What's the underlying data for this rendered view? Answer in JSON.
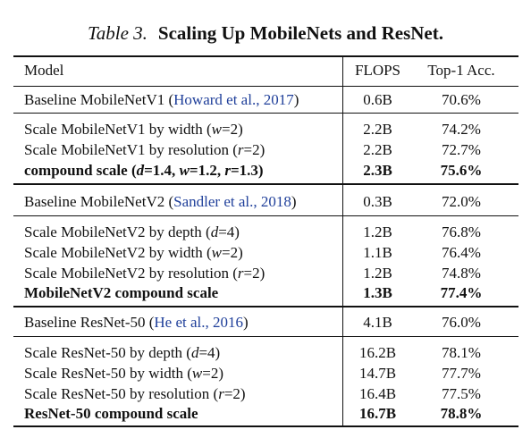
{
  "caption": {
    "number": "Table 3.",
    "title": "Scaling Up MobileNets and ResNet."
  },
  "header": {
    "model": "Model",
    "flops": "FLOPS",
    "acc": "Top-1 Acc."
  },
  "rows": {
    "m1_base": {
      "pre": "Baseline MobileNetV1 (",
      "cite": "Howard et al., 2017",
      "post": ")",
      "flops": "0.6B",
      "acc": "70.6%"
    },
    "m1_width": {
      "pre": "Scale MobileNetV1 by width (",
      "math": "w",
      "post": "=2)",
      "flops": "2.2B",
      "acc": "74.2%"
    },
    "m1_res": {
      "pre": "Scale MobileNetV1 by resolution (",
      "math": "r",
      "post": "=2)",
      "flops": "2.2B",
      "acc": "72.7%"
    },
    "m1_comp": {
      "pre": "compound scale (",
      "d": "d",
      "dval": "=1.4, ",
      "w": "w",
      "wval": "=1.2, ",
      "r": "r",
      "rval": "=1.3)",
      "flops": "2.3B",
      "acc": "75.6%"
    },
    "m2_base": {
      "pre": "Baseline MobileNetV2 (",
      "cite": "Sandler et al., 2018",
      "post": ")",
      "flops": "0.3B",
      "acc": "72.0%"
    },
    "m2_depth": {
      "pre": "Scale MobileNetV2 by depth (",
      "math": "d",
      "post": "=4)",
      "flops": "1.2B",
      "acc": "76.8%"
    },
    "m2_width": {
      "pre": "Scale MobileNetV2 by width (",
      "math": "w",
      "post": "=2)",
      "flops": "1.1B",
      "acc": "76.4%"
    },
    "m2_res": {
      "pre": "Scale MobileNetV2 by resolution (",
      "math": "r",
      "post": "=2)",
      "flops": "1.2B",
      "acc": "74.8%"
    },
    "m2_comp": {
      "label": "MobileNetV2 compound scale",
      "flops": "1.3B",
      "acc": "77.4%"
    },
    "r_base": {
      "pre": "Baseline ResNet-50 (",
      "cite": "He et al., 2016",
      "post": ")",
      "flops": "4.1B",
      "acc": "76.0%"
    },
    "r_depth": {
      "pre": "Scale ResNet-50 by depth (",
      "math": "d",
      "post": "=4)",
      "flops": "16.2B",
      "acc": "78.1%"
    },
    "r_width": {
      "pre": "Scale ResNet-50 by width (",
      "math": "w",
      "post": "=2)",
      "flops": "14.7B",
      "acc": "77.7%"
    },
    "r_res": {
      "pre": "Scale ResNet-50 by resolution (",
      "math": "r",
      "post": "=2)",
      "flops": "16.4B",
      "acc": "77.5%"
    },
    "r_comp": {
      "label": "ResNet-50 compound scale",
      "flops": "16.7B",
      "acc": "78.8%"
    }
  }
}
